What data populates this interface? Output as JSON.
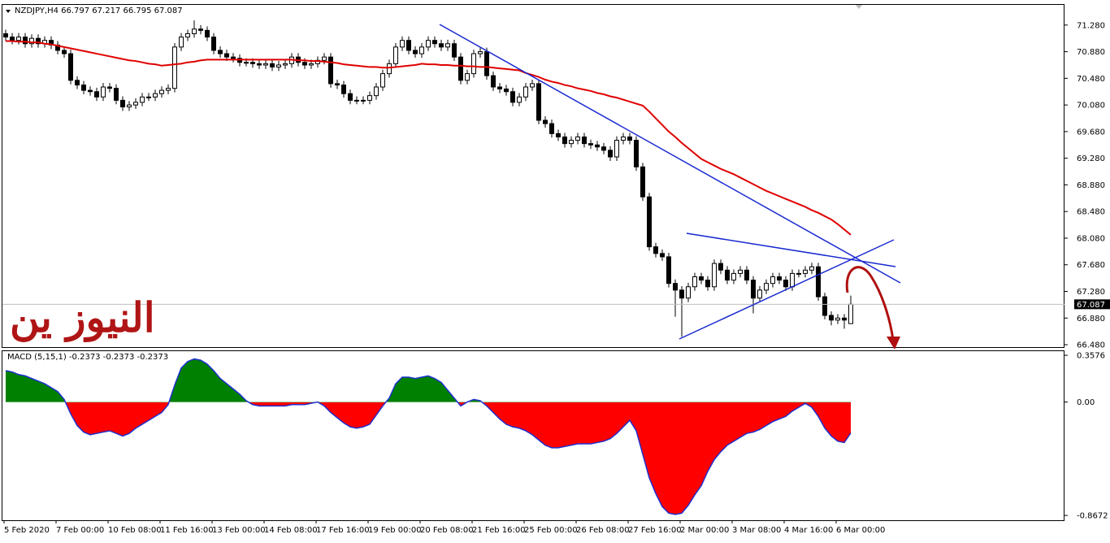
{
  "chart_data": {
    "type": "candlestick",
    "header": "NZDJPY,H4  66.797 67.217 66.795 67.087",
    "watermark": "النيوز ين",
    "categories": [
      "5 Feb 2020",
      null,
      null,
      null,
      null,
      null,
      null,
      null,
      "7 Feb 00:00",
      null,
      null,
      null,
      null,
      null,
      null,
      null,
      "10 Feb 08:00",
      null,
      null,
      null,
      null,
      null,
      null,
      null,
      "11 Feb 16:00",
      null,
      null,
      null,
      null,
      null,
      null,
      null,
      "13 Feb 00:00",
      null,
      null,
      null,
      null,
      null,
      null,
      null,
      "14 Feb 08:00",
      null,
      null,
      null,
      null,
      null,
      null,
      null,
      "17 Feb 16:00",
      null,
      null,
      null,
      null,
      null,
      null,
      null,
      "19 Feb 00:00",
      null,
      null,
      null,
      null,
      null,
      null,
      null,
      "20 Feb 08:00",
      null,
      null,
      null,
      null,
      null,
      null,
      null,
      "21 Feb 16:00",
      null,
      null,
      null,
      null,
      null,
      null,
      null,
      "25 Feb 00:00",
      null,
      null,
      null,
      null,
      null,
      null,
      null,
      "26 Feb 08:00",
      null,
      null,
      null,
      null,
      null,
      null,
      null,
      "27 Feb 16:00",
      null,
      null,
      null,
      null,
      null,
      null,
      null,
      "2 Mar 00:00",
      null,
      null,
      null,
      null,
      null,
      null,
      null,
      "3 Mar 08:00",
      null,
      null,
      null,
      null,
      null,
      null,
      null,
      "4 Mar 16:00",
      null,
      null,
      null,
      null,
      null,
      null,
      null,
      "6 Mar 00:00",
      null,
      null
    ],
    "open": [
      71.15,
      71.1,
      71.05,
      71.1,
      71.0,
      71.08,
      71.0,
      71.05,
      70.98,
      70.9,
      70.85,
      70.45,
      70.38,
      70.3,
      70.28,
      70.2,
      70.35,
      70.33,
      70.15,
      70.05,
      70.08,
      70.12,
      70.2,
      70.2,
      70.25,
      70.3,
      70.33,
      70.95,
      71.1,
      71.15,
      71.22,
      71.2,
      71.1,
      70.9,
      70.85,
      70.8,
      70.78,
      70.72,
      70.72,
      70.7,
      70.68,
      70.7,
      70.65,
      70.68,
      70.7,
      70.8,
      70.72,
      70.68,
      70.7,
      70.75,
      70.8,
      70.4,
      70.38,
      70.25,
      70.15,
      70.15,
      70.15,
      70.22,
      70.35,
      70.55,
      70.7,
      70.95,
      71.05,
      70.9,
      70.85,
      70.95,
      71.05,
      71.0,
      70.95,
      71.0,
      70.8,
      70.45,
      70.55,
      70.85,
      70.88,
      70.52,
      70.35,
      70.32,
      70.28,
      70.12,
      70.2,
      70.35,
      70.4,
      69.85,
      69.8,
      69.65,
      69.6,
      69.5,
      69.55,
      69.6,
      69.5,
      69.48,
      69.45,
      69.4,
      69.3,
      69.55,
      69.6,
      69.55,
      69.15,
      68.7,
      67.95,
      67.85,
      67.8,
      67.4,
      67.3,
      67.18,
      67.35,
      67.5,
      67.45,
      67.35,
      67.7,
      67.6,
      67.45,
      67.55,
      67.6,
      67.45,
      67.18,
      67.3,
      67.4,
      67.5,
      67.45,
      67.35,
      67.55,
      67.55,
      67.6,
      67.65,
      67.2,
      66.92,
      66.85,
      66.88,
      66.797
    ],
    "high": [
      71.21,
      71.16,
      71.16,
      71.16,
      71.14,
      71.14,
      71.11,
      71.11,
      71.04,
      70.96,
      70.91,
      70.51,
      70.44,
      70.36,
      70.34,
      70.41,
      70.41,
      70.39,
      70.21,
      70.14,
      70.18,
      70.26,
      70.26,
      70.31,
      70.36,
      70.39,
      71.01,
      71.16,
      71.21,
      71.35,
      71.28,
      71.26,
      71.16,
      70.96,
      70.91,
      70.86,
      70.84,
      70.78,
      70.78,
      70.76,
      70.76,
      70.76,
      70.74,
      70.76,
      70.86,
      70.86,
      70.78,
      70.76,
      70.81,
      70.86,
      70.86,
      70.46,
      70.44,
      70.31,
      70.21,
      70.21,
      70.28,
      70.41,
      70.61,
      70.76,
      71.01,
      71.11,
      71.11,
      70.96,
      71.01,
      71.11,
      71.11,
      71.06,
      71.06,
      71.06,
      70.86,
      70.61,
      70.91,
      70.94,
      70.94,
      70.58,
      70.41,
      70.38,
      70.34,
      70.26,
      70.41,
      70.46,
      70.46,
      69.91,
      69.86,
      69.71,
      69.66,
      69.61,
      69.66,
      69.66,
      69.56,
      69.54,
      69.51,
      69.46,
      69.61,
      69.66,
      69.66,
      69.61,
      69.21,
      68.76,
      68.01,
      67.91,
      67.86,
      67.46,
      67.36,
      67.41,
      67.56,
      67.56,
      67.51,
      67.76,
      67.76,
      67.66,
      67.61,
      67.66,
      67.66,
      67.51,
      67.36,
      67.46,
      67.56,
      67.56,
      67.51,
      67.61,
      67.61,
      67.66,
      67.71,
      67.71,
      67.26,
      66.98,
      66.94,
      66.94,
      67.217
    ],
    "low": [
      71.04,
      70.99,
      70.99,
      70.94,
      70.94,
      70.94,
      70.94,
      70.92,
      70.84,
      70.79,
      70.39,
      70.32,
      70.24,
      70.22,
      70.14,
      70.14,
      70.27,
      70.09,
      69.99,
      69.99,
      70.02,
      70.06,
      70.14,
      70.14,
      70.19,
      70.24,
      70.27,
      70.89,
      71.04,
      71.09,
      71.14,
      71.04,
      70.84,
      70.79,
      70.74,
      70.72,
      70.66,
      70.66,
      70.64,
      70.62,
      70.62,
      70.59,
      70.59,
      70.62,
      70.64,
      70.66,
      70.62,
      70.62,
      70.64,
      70.69,
      70.34,
      70.32,
      70.19,
      70.09,
      70.09,
      70.09,
      70.09,
      70.16,
      70.29,
      70.49,
      70.64,
      70.89,
      70.84,
      70.79,
      70.79,
      70.89,
      70.94,
      70.89,
      70.89,
      70.74,
      70.39,
      70.39,
      70.49,
      70.79,
      70.46,
      70.29,
      70.26,
      70.22,
      70.06,
      70.06,
      70.14,
      70.29,
      69.79,
      69.74,
      69.59,
      69.54,
      69.44,
      69.44,
      69.49,
      69.44,
      69.42,
      69.39,
      69.34,
      69.24,
      69.24,
      69.49,
      69.49,
      69.09,
      68.64,
      67.89,
      67.79,
      67.74,
      67.34,
      66.9,
      66.6,
      67.12,
      67.29,
      67.39,
      67.29,
      67.29,
      67.54,
      67.39,
      67.39,
      67.49,
      67.39,
      66.95,
      67.12,
      67.24,
      67.34,
      67.39,
      67.29,
      67.29,
      67.49,
      67.49,
      67.54,
      67.14,
      66.86,
      66.77,
      66.79,
      66.72,
      66.795
    ],
    "close": [
      71.1,
      71.05,
      71.1,
      71.0,
      71.08,
      71.0,
      71.05,
      70.98,
      70.9,
      70.85,
      70.45,
      70.38,
      70.3,
      70.28,
      70.2,
      70.35,
      70.33,
      70.15,
      70.05,
      70.08,
      70.12,
      70.2,
      70.2,
      70.25,
      70.3,
      70.33,
      70.95,
      71.1,
      71.15,
      71.22,
      71.2,
      71.1,
      70.9,
      70.85,
      70.8,
      70.78,
      70.72,
      70.72,
      70.7,
      70.68,
      70.7,
      70.65,
      70.68,
      70.7,
      70.8,
      70.72,
      70.68,
      70.7,
      70.75,
      70.8,
      70.4,
      70.38,
      70.25,
      70.15,
      70.15,
      70.15,
      70.22,
      70.35,
      70.55,
      70.7,
      70.95,
      71.05,
      70.9,
      70.85,
      70.95,
      71.05,
      71.0,
      70.95,
      71.0,
      70.8,
      70.45,
      70.55,
      70.85,
      70.88,
      70.52,
      70.35,
      70.32,
      70.28,
      70.12,
      70.2,
      70.35,
      70.4,
      69.85,
      69.8,
      69.65,
      69.6,
      69.5,
      69.55,
      69.6,
      69.5,
      69.48,
      69.45,
      69.4,
      69.3,
      69.55,
      69.6,
      69.55,
      69.15,
      68.7,
      67.95,
      67.85,
      67.8,
      67.4,
      67.3,
      67.18,
      67.35,
      67.5,
      67.45,
      67.35,
      67.7,
      67.6,
      67.45,
      67.55,
      67.6,
      67.45,
      67.18,
      67.3,
      67.4,
      67.5,
      67.45,
      67.35,
      67.55,
      67.55,
      67.6,
      67.65,
      67.2,
      66.92,
      66.85,
      66.88,
      66.85,
      67.087
    ],
    "ma": {
      "color": "#e00000",
      "values": [
        71.04,
        71.04,
        71.03,
        71.03,
        71.02,
        71.02,
        71.0,
        70.99,
        70.97,
        70.95,
        70.93,
        70.91,
        70.89,
        70.87,
        70.85,
        70.83,
        70.81,
        70.79,
        70.77,
        70.75,
        70.74,
        70.72,
        70.7,
        70.69,
        70.67,
        70.68,
        70.69,
        70.7,
        70.72,
        70.73,
        70.75,
        70.76,
        70.76,
        70.76,
        70.76,
        70.76,
        70.76,
        70.76,
        70.76,
        70.76,
        70.76,
        70.76,
        70.76,
        70.76,
        70.76,
        70.75,
        70.75,
        70.74,
        70.74,
        70.73,
        70.72,
        70.71,
        70.69,
        70.68,
        70.67,
        70.66,
        70.65,
        70.65,
        70.64,
        70.64,
        70.65,
        70.66,
        70.67,
        70.68,
        70.7,
        70.69,
        70.69,
        70.68,
        70.68,
        70.67,
        70.67,
        70.66,
        70.66,
        70.65,
        70.65,
        70.64,
        70.63,
        70.62,
        70.61,
        70.6,
        70.56,
        70.53,
        70.5,
        70.46,
        70.43,
        70.41,
        70.38,
        70.36,
        70.33,
        70.31,
        70.29,
        70.26,
        70.24,
        70.21,
        70.19,
        70.16,
        70.13,
        70.1,
        70.07,
        69.98,
        69.88,
        69.78,
        69.68,
        69.6,
        69.51,
        69.43,
        69.35,
        69.27,
        69.22,
        69.17,
        69.12,
        69.08,
        69.04,
        68.99,
        68.94,
        68.89,
        68.84,
        68.79,
        68.75,
        68.71,
        68.67,
        68.63,
        68.59,
        68.55,
        68.5,
        68.46,
        68.41,
        68.36,
        68.29,
        68.21,
        68.13
      ]
    },
    "ylim": [
      66.444,
      71.583
    ],
    "yticks": [
      {
        "value": 71.28,
        "label": "71.280"
      },
      {
        "value": 70.88,
        "label": "70.880"
      },
      {
        "value": 70.48,
        "label": "70.480"
      },
      {
        "value": 70.08,
        "label": "70.080"
      },
      {
        "value": 69.68,
        "label": "69.680"
      },
      {
        "value": 69.28,
        "label": "69.280"
      },
      {
        "value": 68.88,
        "label": "68.880"
      },
      {
        "value": 68.48,
        "label": "68.480"
      },
      {
        "value": 68.08,
        "label": "68.080"
      },
      {
        "value": 67.68,
        "label": "67.680"
      },
      {
        "value": 67.28,
        "label": "67.280"
      },
      {
        "value": 66.88,
        "label": "66.880"
      },
      {
        "value": 66.48,
        "label": "66.480"
      }
    ],
    "macd": {
      "title": "MACD (5,15,1) -0.2373 -0.2373 -0.2373",
      "positive_color": "#008000",
      "negative_color": "#ff0000",
      "line_color": "#2030d0",
      "values": [
        0.24,
        0.23,
        0.21,
        0.2,
        0.18,
        0.16,
        0.14,
        0.11,
        0.08,
        0.02,
        -0.09,
        -0.18,
        -0.23,
        -0.25,
        -0.24,
        -0.23,
        -0.22,
        -0.24,
        -0.26,
        -0.24,
        -0.2,
        -0.17,
        -0.14,
        -0.11,
        -0.08,
        -0.02,
        0.13,
        0.26,
        0.31,
        0.33,
        0.32,
        0.29,
        0.24,
        0.18,
        0.14,
        0.1,
        0.06,
        0.01,
        -0.02,
        -0.03,
        -0.03,
        -0.03,
        -0.03,
        -0.03,
        -0.02,
        -0.02,
        -0.02,
        -0.01,
        0.0,
        -0.03,
        -0.08,
        -0.12,
        -0.16,
        -0.19,
        -0.2,
        -0.19,
        -0.17,
        -0.1,
        -0.03,
        0.03,
        0.14,
        0.19,
        0.19,
        0.18,
        0.19,
        0.2,
        0.18,
        0.15,
        0.09,
        0.03,
        -0.03,
        0.0,
        0.02,
        0.01,
        -0.03,
        -0.08,
        -0.13,
        -0.17,
        -0.19,
        -0.2,
        -0.22,
        -0.25,
        -0.29,
        -0.33,
        -0.35,
        -0.35,
        -0.34,
        -0.33,
        -0.32,
        -0.32,
        -0.32,
        -0.31,
        -0.3,
        -0.28,
        -0.24,
        -0.19,
        -0.14,
        -0.22,
        -0.4,
        -0.58,
        -0.7,
        -0.8,
        -0.85,
        -0.86,
        -0.85,
        -0.79,
        -0.71,
        -0.64,
        -0.53,
        -0.44,
        -0.38,
        -0.33,
        -0.3,
        -0.27,
        -0.24,
        -0.23,
        -0.21,
        -0.18,
        -0.15,
        -0.13,
        -0.11,
        -0.07,
        -0.04,
        -0.01,
        -0.04,
        -0.11,
        -0.2,
        -0.26,
        -0.3,
        -0.31,
        -0.2373
      ],
      "ylim": [
        -0.904,
        0.389
      ],
      "yticks": [
        0.3576,
        {
          "value": 0,
          "label": "0.00"
        },
        -0.8672
      ]
    }
  }
}
